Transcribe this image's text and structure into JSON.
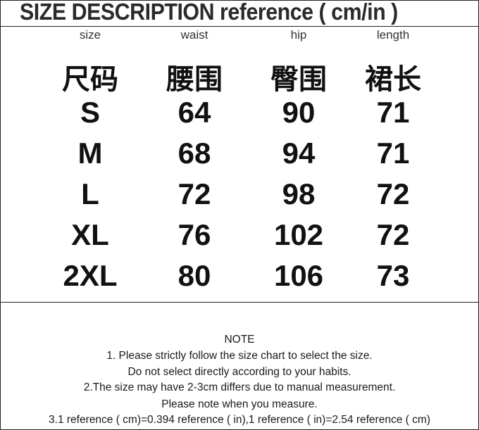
{
  "title": "SIZE DESCRIPTION reference ( cm/in )",
  "table": {
    "headers_en": [
      "size",
      "waist",
      "hip",
      "length"
    ],
    "headers_cn": [
      "尺码",
      "腰围",
      "臀围",
      "裙长"
    ],
    "rows": [
      [
        "S",
        "64",
        "90",
        "71"
      ],
      [
        "M",
        "68",
        "94",
        "71"
      ],
      [
        "L",
        "72",
        "98",
        "72"
      ],
      [
        "XL",
        "76",
        "102",
        "72"
      ],
      [
        "2XL",
        "80",
        "106",
        "73"
      ]
    ]
  },
  "notes": [
    "NOTE",
    "1. Please strictly follow the size chart to select the size.",
    "Do not select directly according to your habits.",
    "2.The size may have 2-3cm differs due to manual measurement.",
    "Please note when you measure.",
    "3.1 reference ( cm)=0.394 reference ( in),1 reference ( in)=2.54 reference ( cm)"
  ]
}
